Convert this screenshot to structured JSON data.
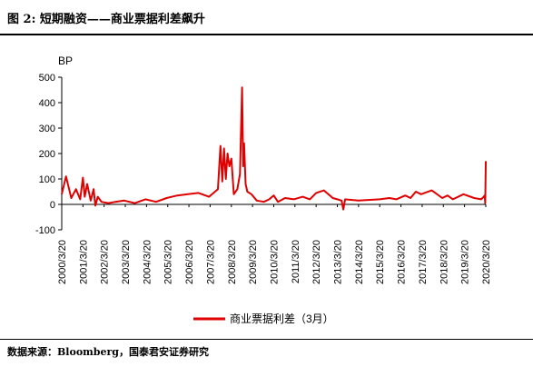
{
  "figure": {
    "title": "图 2:  短期融资——商业票据利差飙升",
    "source": "数据来源：Bloomberg，国泰君安证券研究"
  },
  "chart_data": {
    "type": "line",
    "ylabel": "BP",
    "ylim": [
      -100,
      500
    ],
    "yticks": [
      -100,
      0,
      100,
      200,
      300,
      400,
      500
    ],
    "xlim": [
      "2000-03-20",
      "2020-03-20"
    ],
    "xtick_labels": [
      "2000/3/20",
      "2001/3/20",
      "2002/3/20",
      "2003/3/20",
      "2004/3/20",
      "2005/3/20",
      "2006/3/20",
      "2007/3/20",
      "2008/3/20",
      "2009/3/20",
      "2010/3/20",
      "2011/3/20",
      "2012/3/20",
      "2013/3/20",
      "2014/3/20",
      "2015/3/20",
      "2016/3/20",
      "2017/3/20",
      "2018/3/20",
      "2019/3/20",
      "2020/3/20"
    ],
    "grid": false,
    "legend_position": "bottom-center",
    "series": [
      {
        "name": "商业票据利差（3月）",
        "color": "#e00000",
        "x": [
          "2000-03-20",
          "2000-06-01",
          "2000-09-01",
          "2000-11-20",
          "2001-02-01",
          "2001-03-20",
          "2001-04-20",
          "2001-06-01",
          "2001-08-01",
          "2001-09-20",
          "2001-10-20",
          "2001-12-01",
          "2002-02-01",
          "2002-06-01",
          "2002-10-01",
          "2003-03-01",
          "2003-09-01",
          "2004-03-01",
          "2004-09-01",
          "2005-03-01",
          "2005-09-01",
          "2006-03-01",
          "2006-09-01",
          "2007-03-01",
          "2007-08-01",
          "2007-09-15",
          "2007-10-15",
          "2007-11-15",
          "2007-12-15",
          "2008-01-15",
          "2008-02-15",
          "2008-03-20",
          "2008-05-01",
          "2008-07-01",
          "2008-08-15",
          "2008-09-20",
          "2008-10-10",
          "2008-10-25",
          "2008-11-20",
          "2008-12-20",
          "2009-03-01",
          "2009-06-01",
          "2009-10-01",
          "2010-01-01",
          "2010-03-20",
          "2010-06-01",
          "2010-10-01",
          "2011-03-01",
          "2011-08-01",
          "2011-12-01",
          "2012-03-20",
          "2012-08-01",
          "2013-01-01",
          "2013-03-20",
          "2013-06-01",
          "2013-07-01",
          "2013-08-01",
          "2014-03-20",
          "2015-03-20",
          "2015-09-01",
          "2016-01-01",
          "2016-06-01",
          "2016-09-01",
          "2016-12-01",
          "2017-03-01",
          "2017-09-01",
          "2018-03-01",
          "2018-06-01",
          "2018-09-01",
          "2019-03-01",
          "2019-09-01",
          "2020-01-01",
          "2020-02-15",
          "2020-03-01",
          "2020-03-10",
          "2020-03-20"
        ],
        "values": [
          40,
          110,
          25,
          60,
          20,
          105,
          30,
          80,
          15,
          60,
          -5,
          30,
          10,
          5,
          10,
          15,
          5,
          20,
          10,
          25,
          35,
          40,
          45,
          30,
          60,
          230,
          90,
          220,
          100,
          200,
          150,
          180,
          40,
          60,
          120,
          460,
          150,
          240,
          80,
          50,
          40,
          15,
          10,
          20,
          35,
          10,
          25,
          20,
          30,
          20,
          45,
          55,
          25,
          20,
          15,
          -20,
          20,
          15,
          20,
          25,
          20,
          35,
          25,
          50,
          40,
          55,
          25,
          35,
          20,
          40,
          25,
          20,
          30,
          35,
          5,
          170
        ]
      }
    ]
  }
}
